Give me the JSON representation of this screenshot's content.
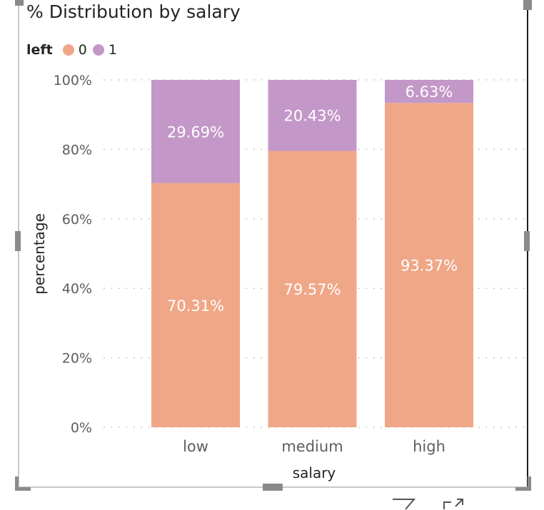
{
  "title": "% Distribution by salary",
  "legend": {
    "title": "left",
    "items": [
      {
        "label": "0",
        "color": "#F0A787"
      },
      {
        "label": "1",
        "color": "#C398C8"
      }
    ]
  },
  "chart_data": {
    "type": "bar",
    "stacked": true,
    "title": "% Distribution by salary",
    "xlabel": "salary",
    "ylabel": "percentage",
    "categories": [
      "low",
      "medium",
      "high"
    ],
    "series": [
      {
        "name": "0",
        "values": [
          70.31,
          79.57,
          93.37
        ],
        "labels": [
          "70.31%",
          "79.57%",
          "93.37%"
        ],
        "color": "#F0A787"
      },
      {
        "name": "1",
        "values": [
          29.69,
          20.43,
          6.63
        ],
        "labels": [
          "29.69%",
          "20.43%",
          "6.63%"
        ],
        "color": "#C398C8"
      }
    ],
    "ylim": [
      0,
      100
    ],
    "yticks": [
      "0%",
      "20%",
      "40%",
      "60%",
      "80%",
      "100%"
    ],
    "grid": "horizontal-dotted",
    "legend_position": "top-left"
  }
}
